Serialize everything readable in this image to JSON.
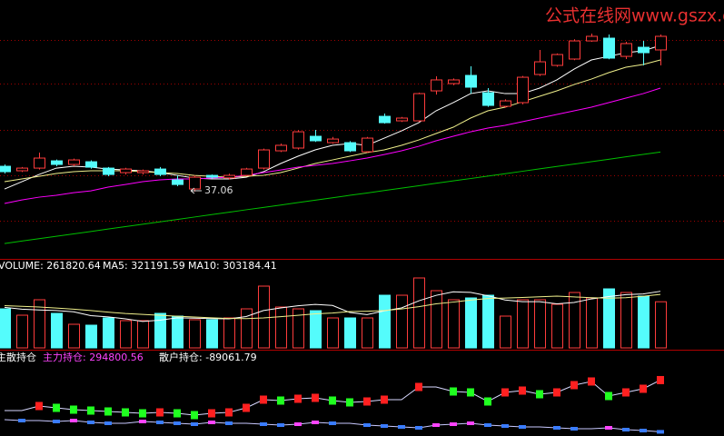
{
  "watermark": "公式在线网www.gszx.com.cn",
  "chart_data": [
    {
      "type": "candlestick",
      "up_color": "#ff3c3c",
      "down_color": "#54fcfc",
      "open": [
        40.09,
        39.55,
        39.87,
        40.74,
        40.31,
        40.63,
        39.87,
        39.33,
        39.33,
        39.76,
        38.46,
        37.37,
        39.0,
        38.7,
        39.0,
        39.87,
        41.94,
        42.27,
        43.68,
        42.92,
        42.92,
        41.83,
        46.07,
        45.53,
        45.53,
        49.12,
        49.99,
        50.97,
        48.9,
        47.27,
        47.71,
        51.08,
        52.17,
        52.93,
        55.1,
        55.43,
        53.25,
        54.34,
        54.02
      ],
      "high": [
        40.3,
        40.0,
        41.72,
        40.9,
        41.0,
        40.8,
        40.0,
        39.9,
        39.7,
        40.0,
        39.0,
        39.0,
        39.1,
        39.2,
        39.9,
        42.2,
        42.8,
        44.4,
        44.44,
        43.6,
        43.1,
        43.6,
        46.4,
        46.0,
        48.9,
        50.86,
        50.6,
        52.06,
        49.45,
        48.1,
        50.9,
        54.02,
        53.6,
        55.3,
        55.97,
        55.87,
        55.0,
        55.1,
        55.87
      ],
      "low": [
        39.22,
        39.4,
        39.7,
        40.1,
        40.1,
        39.8,
        38.9,
        39.1,
        39.1,
        38.9,
        37.7,
        37.06,
        38.6,
        38.5,
        38.9,
        39.7,
        41.8,
        42.1,
        43.0,
        42.8,
        41.8,
        41.7,
        45.2,
        45.4,
        45.4,
        48.68,
        49.8,
        48.79,
        47.2,
        47.1,
        47.5,
        50.9,
        52.0,
        52.8,
        55.0,
        52.9,
        52.93,
        52.17,
        52.17
      ],
      "close": [
        39.44,
        39.87,
        41.07,
        40.31,
        40.85,
        39.98,
        39.11,
        39.76,
        39.55,
        39.11,
        37.91,
        38.78,
        38.78,
        39.0,
        39.76,
        42.05,
        42.6,
        44.22,
        43.14,
        43.35,
        41.94,
        43.46,
        45.31,
        45.86,
        48.79,
        50.43,
        50.43,
        49.56,
        47.38,
        47.92,
        50.75,
        52.6,
        53.47,
        55.1,
        55.65,
        53.04,
        54.78,
        53.69,
        55.65
      ],
      "ylim": [
        29,
        60
      ],
      "yticks": [
        33.56,
        39.0,
        44.44,
        49.99,
        55.21
      ],
      "grid_color": "#a00000",
      "lines": [
        {
          "color": "#ffffff",
          "values": [
            37.37,
            38.24,
            39.11,
            39.87,
            40.09,
            39.98,
            39.76,
            39.65,
            39.55,
            39.33,
            39.0,
            38.68,
            38.57,
            38.57,
            38.78,
            39.44,
            40.42,
            41.29,
            42.05,
            42.6,
            42.81,
            42.6,
            43.46,
            44.33,
            45.31,
            46.73,
            47.71,
            48.79,
            49.12,
            48.79,
            48.79,
            49.45,
            50.43,
            51.73,
            52.82,
            53.25,
            53.69,
            53.91,
            54.56
          ]
        },
        {
          "color": "#f0f08c",
          "values": [
            38.24,
            38.57,
            38.89,
            39.22,
            39.44,
            39.55,
            39.55,
            39.55,
            39.44,
            39.33,
            39.22,
            39.0,
            38.89,
            38.78,
            38.89,
            39.0,
            39.33,
            39.87,
            40.42,
            40.85,
            41.29,
            41.72,
            42.05,
            42.6,
            43.24,
            44.01,
            44.77,
            45.86,
            46.73,
            47.16,
            47.81,
            48.47,
            49.12,
            49.88,
            50.53,
            51.3,
            51.95,
            52.28,
            52.82
          ]
        },
        {
          "color": "#ff00ff",
          "values": [
            35.63,
            36.06,
            36.39,
            36.61,
            36.93,
            37.15,
            37.59,
            37.91,
            38.24,
            38.46,
            38.57,
            38.57,
            38.68,
            38.78,
            39.0,
            39.33,
            39.65,
            39.98,
            40.2,
            40.42,
            40.74,
            41.07,
            41.5,
            41.94,
            42.48,
            43.14,
            43.68,
            44.22,
            44.66,
            44.99,
            45.42,
            45.86,
            46.29,
            46.73,
            47.16,
            47.71,
            48.25,
            48.79,
            49.45
          ]
        },
        {
          "color": "#00c000",
          "values": [
            30.84,
            31.13,
            31.42,
            31.7,
            31.99,
            32.28,
            32.57,
            32.86,
            33.15,
            33.43,
            33.72,
            34.01,
            34.3,
            34.59,
            34.88,
            35.16,
            35.45,
            35.74,
            36.03,
            36.32,
            36.61,
            36.89,
            37.18,
            37.47,
            37.76,
            38.05,
            38.34,
            38.62,
            38.91,
            39.2,
            39.49,
            39.78,
            40.07,
            40.35,
            40.64,
            40.93,
            41.22,
            41.51,
            41.8
          ]
        }
      ]
    },
    {
      "type": "bar",
      "title": "VOLUME:",
      "values": [
        221600,
        185500,
        273200,
        195900,
        134000,
        128900,
        170100,
        154600,
        154600,
        195900,
        180400,
        159800,
        159800,
        170100,
        221600,
        350500,
        231900,
        221600,
        211300,
        170100,
        170100,
        170100,
        298900,
        298900,
        396900,
        324700,
        273200,
        283500,
        298900,
        180400,
        273200,
        273200,
        247400,
        314400,
        283500,
        335000,
        314400,
        293800,
        261820.64
      ],
      "ylim": [
        0,
        500000
      ],
      "series": [
        {
          "name": "MA5:",
          "color": "#ffffff",
          "values": [
            230000,
            220000,
            215000,
            212000,
            205000,
            183000,
            176000,
            165000,
            150000,
            157000,
            171000,
            169000,
            166000,
            165000,
            178000,
            212000,
            227000,
            239000,
            247000,
            241000,
            201000,
            189000,
            210000,
            227000,
            267000,
            298000,
            318000,
            315000,
            296000,
            272000,
            262000,
            262000,
            250000,
            258000,
            278000,
            291000,
            302000,
            306000,
            321191.59
          ]
        },
        {
          "name": "MA10:",
          "color": "#f0f08c",
          "values": [
            240000,
            236000,
            232000,
            226000,
            220000,
            212000,
            203000,
            195000,
            190000,
            185000,
            180000,
            175000,
            171000,
            167000,
            166000,
            170000,
            177000,
            185000,
            193000,
            198000,
            206000,
            208000,
            212000,
            221000,
            234000,
            250000,
            260000,
            271000,
            280000,
            283000,
            286000,
            290000,
            294000,
            289000,
            285000,
            282000,
            285000,
            293000,
            303184.41
          ]
        }
      ]
    },
    {
      "type": "line",
      "title": "主散持仓",
      "ylim": [
        -120000,
        480000
      ],
      "up_color": "#ff2020",
      "down_color": "#20ff20",
      "series": [
        {
          "name": "主力持仓:",
          "color": "#ff44ff",
          "line_color": "#d8d8ff",
          "values": [
            68800,
            68800,
            102500,
            89000,
            75500,
            68800,
            62000,
            55300,
            48500,
            55300,
            48500,
            35100,
            48500,
            55300,
            89000,
            149700,
            143000,
            156400,
            163200,
            143000,
            129500,
            136200,
            149700,
            149700,
            244100,
            244100,
            210400,
            203600,
            136200,
            203600,
            217100,
            190200,
            203600,
            257600,
            284600,
            176700,
            203600,
            230600,
            294800.56
          ]
        },
        {
          "name": "散户持仓:",
          "color": "#ffffff",
          "line_color": "#c8c8ff",
          "values": [
            1300,
            -5400,
            -5400,
            -12100,
            -5400,
            -18900,
            -25600,
            -25600,
            -12100,
            -18900,
            -25600,
            -32400,
            -18900,
            -25600,
            -25600,
            -32400,
            -39100,
            -32400,
            -18900,
            -25600,
            -25600,
            -39100,
            -45900,
            -52600,
            -59300,
            -39100,
            -32400,
            -25600,
            -39100,
            -45900,
            -52600,
            -52600,
            -59300,
            -66100,
            -66100,
            -59300,
            -72800,
            -79600,
            -89061.79
          ]
        }
      ]
    }
  ]
}
